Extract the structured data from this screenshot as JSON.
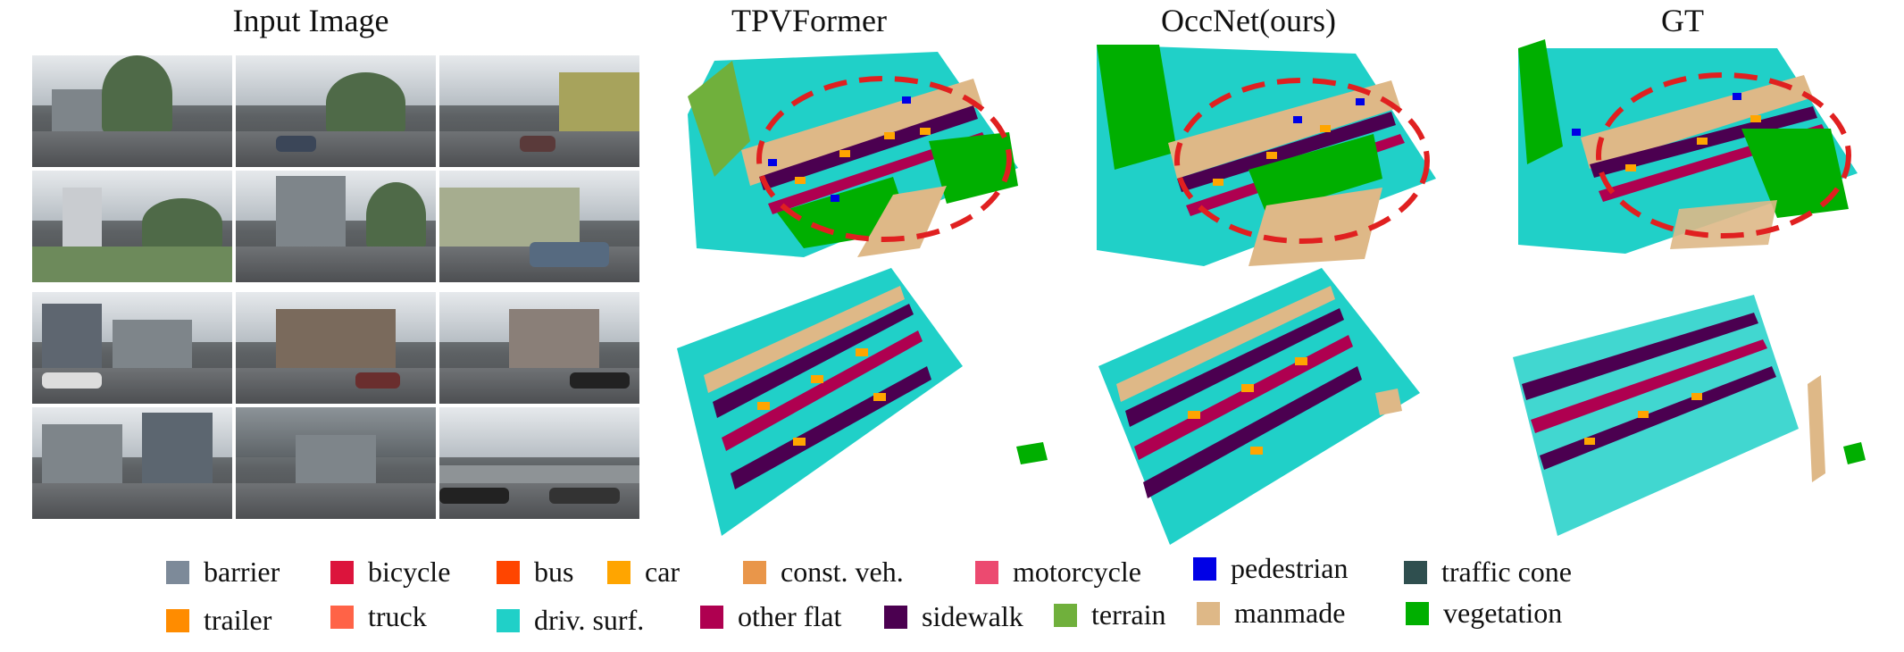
{
  "columns": {
    "input": "Input Image",
    "tpvformer": "TPVFormer",
    "occnet": "OccNet(ours)",
    "gt": "GT"
  },
  "legend": [
    {
      "label": "barrier",
      "color": "#7d8a99"
    },
    {
      "label": "bicycle",
      "color": "#dc143c"
    },
    {
      "label": "bus",
      "color": "#ff4500"
    },
    {
      "label": "car",
      "color": "#ffa500"
    },
    {
      "label": "const. veh.",
      "color": "#e9964a"
    },
    {
      "label": "motorcycle",
      "color": "#ec4a70"
    },
    {
      "label": "pedestrian",
      "color": "#0000e6"
    },
    {
      "label": "traffic cone",
      "color": "#2f4f4f"
    },
    {
      "label": "trailer",
      "color": "#ff8c00"
    },
    {
      "label": "truck",
      "color": "#ff6347"
    },
    {
      "label": "driv. surf.",
      "color": "#20d0c8"
    },
    {
      "label": "other flat",
      "color": "#af0050"
    },
    {
      "label": "sidewalk",
      "color": "#4b0050"
    },
    {
      "label": "terrain",
      "color": "#70b03c"
    },
    {
      "label": "manmade",
      "color": "#deb887"
    },
    {
      "label": "vegetation",
      "color": "#00af00"
    }
  ]
}
